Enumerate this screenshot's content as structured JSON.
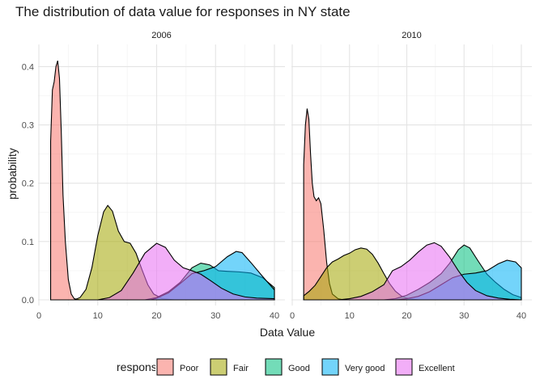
{
  "chart_data": {
    "type": "area",
    "title": "The distribution of data value for responses in NY state",
    "xlabel": "Data Value",
    "ylabel": "probability",
    "xlim": [
      0,
      40
    ],
    "ylim": [
      0,
      0.42
    ],
    "x_ticks": [
      0,
      10,
      20,
      30,
      40
    ],
    "y_ticks": [
      0.0,
      0.1,
      0.2,
      0.3,
      0.4
    ],
    "x_tick_labels": [
      "0",
      "10",
      "20",
      "30",
      "40"
    ],
    "y_tick_labels": [
      "0.0",
      "0.1",
      "0.2",
      "0.3",
      "0.4"
    ],
    "grid": true,
    "legend": {
      "title": "response",
      "position": "bottom",
      "labels": [
        "Poor",
        "Fair",
        "Good",
        "Very good",
        "Excellent"
      ],
      "colors": [
        "#F8766D",
        "#A3A500",
        "#00BF7D",
        "#00B0F6",
        "#E76BF3"
      ]
    },
    "panels": [
      {
        "label": "2006",
        "series": [
          {
            "name": "Poor",
            "color": "#F8766D",
            "points": [
              [
                2.0,
                0.272
              ],
              [
                2.3,
                0.36
              ],
              [
                2.6,
                0.374
              ],
              [
                2.9,
                0.4
              ],
              [
                3.2,
                0.41
              ],
              [
                3.5,
                0.38
              ],
              [
                3.8,
                0.29
              ],
              [
                4.1,
                0.18
              ],
              [
                4.5,
                0.1
              ],
              [
                5.0,
                0.035
              ],
              [
                5.5,
                0.01
              ],
              [
                6.0,
                0.002
              ],
              [
                7.0,
                0.0
              ],
              [
                40.0,
                0.0
              ]
            ]
          },
          {
            "name": "Fair",
            "color": "#A3A500",
            "points": [
              [
                2.0,
                0.0
              ],
              [
                6.0,
                0.0
              ],
              [
                7.0,
                0.004
              ],
              [
                8.0,
                0.018
              ],
              [
                9.0,
                0.055
              ],
              [
                10.0,
                0.11
              ],
              [
                11.0,
                0.151
              ],
              [
                11.7,
                0.162
              ],
              [
                12.5,
                0.152
              ],
              [
                13.5,
                0.118
              ],
              [
                14.5,
                0.1
              ],
              [
                15.5,
                0.097
              ],
              [
                16.5,
                0.08
              ],
              [
                17.5,
                0.052
              ],
              [
                18.5,
                0.026
              ],
              [
                19.5,
                0.01
              ],
              [
                21.0,
                0.002
              ],
              [
                23.0,
                0.0
              ],
              [
                40.0,
                0.0
              ]
            ]
          },
          {
            "name": "Good",
            "color": "#00BF7D",
            "points": [
              [
                2.0,
                0.0
              ],
              [
                18.0,
                0.0
              ],
              [
                20.0,
                0.004
              ],
              [
                22.0,
                0.014
              ],
              [
                24.0,
                0.03
              ],
              [
                26.0,
                0.055
              ],
              [
                27.5,
                0.063
              ],
              [
                29.0,
                0.06
              ],
              [
                30.5,
                0.05
              ],
              [
                32.0,
                0.049
              ],
              [
                34.0,
                0.048
              ],
              [
                36.0,
                0.046
              ],
              [
                38.0,
                0.038
              ],
              [
                40.0,
                0.021
              ]
            ]
          },
          {
            "name": "Very good",
            "color": "#00B0F6",
            "points": [
              [
                2.0,
                0.0
              ],
              [
                19.0,
                0.0
              ],
              [
                20.0,
                0.003
              ],
              [
                22.0,
                0.012
              ],
              [
                24.0,
                0.028
              ],
              [
                26.0,
                0.045
              ],
              [
                28.0,
                0.05
              ],
              [
                30.0,
                0.057
              ],
              [
                32.0,
                0.074
              ],
              [
                33.5,
                0.083
              ],
              [
                34.5,
                0.081
              ],
              [
                36.0,
                0.064
              ],
              [
                38.0,
                0.04
              ],
              [
                40.0,
                0.017
              ]
            ]
          },
          {
            "name": "Excellent",
            "color": "#E76BF3",
            "points": [
              [
                2.0,
                0.0
              ],
              [
                10.0,
                0.0
              ],
              [
                12.0,
                0.004
              ],
              [
                14.0,
                0.016
              ],
              [
                16.0,
                0.046
              ],
              [
                18.0,
                0.08
              ],
              [
                20.0,
                0.097
              ],
              [
                21.5,
                0.09
              ],
              [
                23.0,
                0.068
              ],
              [
                24.5,
                0.055
              ],
              [
                26.0,
                0.05
              ],
              [
                27.5,
                0.044
              ],
              [
                29.0,
                0.034
              ],
              [
                31.0,
                0.02
              ],
              [
                33.0,
                0.01
              ],
              [
                35.0,
                0.005
              ],
              [
                37.0,
                0.003
              ],
              [
                40.0,
                0.002
              ]
            ]
          }
        ]
      },
      {
        "label": "2010",
        "series": [
          {
            "name": "Poor",
            "color": "#F8766D",
            "points": [
              [
                2.0,
                0.232
              ],
              [
                2.3,
                0.3
              ],
              [
                2.6,
                0.328
              ],
              [
                2.9,
                0.31
              ],
              [
                3.2,
                0.25
              ],
              [
                3.5,
                0.2
              ],
              [
                3.8,
                0.177
              ],
              [
                4.2,
                0.17
              ],
              [
                4.6,
                0.175
              ],
              [
                5.0,
                0.165
              ],
              [
                5.5,
                0.12
              ],
              [
                6.0,
                0.065
              ],
              [
                6.5,
                0.028
              ],
              [
                7.0,
                0.01
              ],
              [
                8.0,
                0.002
              ],
              [
                9.0,
                0.0
              ],
              [
                40.0,
                0.0
              ]
            ]
          },
          {
            "name": "Fair",
            "color": "#A3A500",
            "points": [
              [
                2.0,
                0.007
              ],
              [
                3.0,
                0.015
              ],
              [
                4.0,
                0.025
              ],
              [
                5.0,
                0.04
              ],
              [
                6.0,
                0.055
              ],
              [
                7.0,
                0.065
              ],
              [
                8.0,
                0.07
              ],
              [
                9.0,
                0.076
              ],
              [
                10.0,
                0.08
              ],
              [
                11.0,
                0.086
              ],
              [
                12.0,
                0.089
              ],
              [
                13.0,
                0.087
              ],
              [
                14.0,
                0.078
              ],
              [
                15.0,
                0.063
              ],
              [
                16.0,
                0.045
              ],
              [
                17.0,
                0.028
              ],
              [
                18.0,
                0.015
              ],
              [
                19.0,
                0.007
              ],
              [
                20.0,
                0.003
              ],
              [
                22.0,
                0.0
              ],
              [
                40.0,
                0.0
              ]
            ]
          },
          {
            "name": "Good",
            "color": "#00BF7D",
            "points": [
              [
                2.0,
                0.0
              ],
              [
                16.0,
                0.0
              ],
              [
                18.0,
                0.002
              ],
              [
                20.0,
                0.008
              ],
              [
                22.0,
                0.018
              ],
              [
                24.0,
                0.03
              ],
              [
                26.0,
                0.045
              ],
              [
                27.5,
                0.063
              ],
              [
                29.0,
                0.086
              ],
              [
                30.0,
                0.094
              ],
              [
                31.0,
                0.089
              ],
              [
                32.5,
                0.066
              ],
              [
                34.0,
                0.044
              ],
              [
                35.5,
                0.03
              ],
              [
                37.0,
                0.018
              ],
              [
                38.5,
                0.009
              ],
              [
                40.0,
                0.004
              ]
            ]
          },
          {
            "name": "Very good",
            "color": "#00B0F6",
            "points": [
              [
                2.0,
                0.0
              ],
              [
                18.0,
                0.0
              ],
              [
                20.0,
                0.002
              ],
              [
                22.0,
                0.006
              ],
              [
                24.0,
                0.014
              ],
              [
                26.0,
                0.026
              ],
              [
                28.0,
                0.038
              ],
              [
                30.0,
                0.044
              ],
              [
                32.0,
                0.046
              ],
              [
                34.0,
                0.05
              ],
              [
                36.0,
                0.062
              ],
              [
                37.5,
                0.068
              ],
              [
                39.0,
                0.065
              ],
              [
                40.0,
                0.055
              ]
            ]
          },
          {
            "name": "Excellent",
            "color": "#E76BF3",
            "points": [
              [
                2.0,
                0.0
              ],
              [
                8.0,
                0.0
              ],
              [
                10.0,
                0.002
              ],
              [
                12.0,
                0.006
              ],
              [
                14.0,
                0.014
              ],
              [
                16.0,
                0.026
              ],
              [
                17.5,
                0.05
              ],
              [
                19.0,
                0.057
              ],
              [
                20.5,
                0.068
              ],
              [
                22.0,
                0.082
              ],
              [
                23.5,
                0.094
              ],
              [
                24.8,
                0.098
              ],
              [
                26.0,
                0.092
              ],
              [
                27.5,
                0.073
              ],
              [
                29.0,
                0.05
              ],
              [
                30.5,
                0.03
              ],
              [
                32.0,
                0.016
              ],
              [
                34.0,
                0.007
              ],
              [
                36.0,
                0.003
              ],
              [
                38.0,
                0.001
              ],
              [
                40.0,
                0.0
              ]
            ]
          }
        ]
      }
    ]
  }
}
